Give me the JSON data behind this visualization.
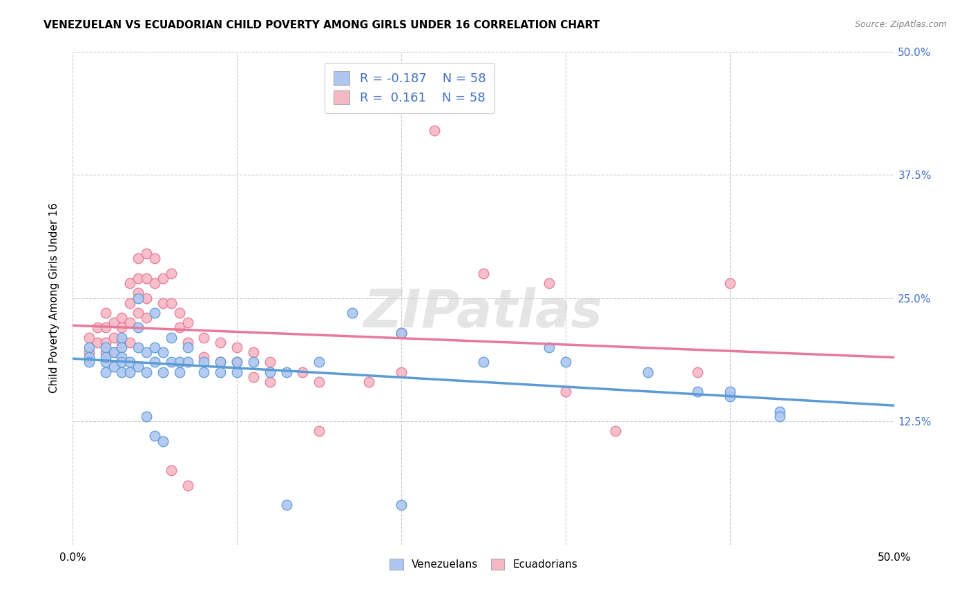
{
  "title": "VENEZUELAN VS ECUADORIAN CHILD POVERTY AMONG GIRLS UNDER 16 CORRELATION CHART",
  "source": "Source: ZipAtlas.com",
  "ylabel": "Child Poverty Among Girls Under 16",
  "xlim": [
    0.0,
    0.5
  ],
  "ylim": [
    0.0,
    0.5
  ],
  "yticks": [
    0.0,
    0.125,
    0.25,
    0.375,
    0.5
  ],
  "xticks": [
    0.0,
    0.1,
    0.2,
    0.3,
    0.4,
    0.5
  ],
  "ytick_labels_right": [
    "",
    "12.5%",
    "25.0%",
    "37.5%",
    "50.0%"
  ],
  "xtick_labels": [
    "0.0%",
    "",
    "",
    "",
    "",
    "50.0%"
  ],
  "venezuelan_color": "#aec6f0",
  "ecuadorian_color": "#f5b8c4",
  "venezuelan_line_color": "#5b9bd5",
  "ecuadorian_line_color": "#e8799a",
  "background_color": "#ffffff",
  "grid_color": "#cccccc",
  "watermark": "ZIPatlas",
  "tick_color": "#4472c4",
  "venezuelan_scatter": [
    [
      0.01,
      0.2
    ],
    [
      0.01,
      0.19
    ],
    [
      0.01,
      0.185
    ],
    [
      0.02,
      0.2
    ],
    [
      0.02,
      0.185
    ],
    [
      0.02,
      0.19
    ],
    [
      0.02,
      0.175
    ],
    [
      0.025,
      0.195
    ],
    [
      0.025,
      0.18
    ],
    [
      0.03,
      0.21
    ],
    [
      0.03,
      0.2
    ],
    [
      0.03,
      0.19
    ],
    [
      0.03,
      0.185
    ],
    [
      0.03,
      0.175
    ],
    [
      0.035,
      0.185
    ],
    [
      0.035,
      0.175
    ],
    [
      0.04,
      0.25
    ],
    [
      0.04,
      0.22
    ],
    [
      0.04,
      0.2
    ],
    [
      0.04,
      0.18
    ],
    [
      0.045,
      0.195
    ],
    [
      0.045,
      0.175
    ],
    [
      0.05,
      0.235
    ],
    [
      0.05,
      0.2
    ],
    [
      0.05,
      0.185
    ],
    [
      0.055,
      0.195
    ],
    [
      0.055,
      0.175
    ],
    [
      0.06,
      0.21
    ],
    [
      0.06,
      0.185
    ],
    [
      0.065,
      0.185
    ],
    [
      0.065,
      0.175
    ],
    [
      0.07,
      0.2
    ],
    [
      0.07,
      0.185
    ],
    [
      0.08,
      0.185
    ],
    [
      0.08,
      0.175
    ],
    [
      0.09,
      0.185
    ],
    [
      0.09,
      0.175
    ],
    [
      0.1,
      0.185
    ],
    [
      0.1,
      0.175
    ],
    [
      0.11,
      0.185
    ],
    [
      0.12,
      0.175
    ],
    [
      0.13,
      0.175
    ],
    [
      0.15,
      0.185
    ],
    [
      0.17,
      0.235
    ],
    [
      0.2,
      0.215
    ],
    [
      0.25,
      0.185
    ],
    [
      0.29,
      0.2
    ],
    [
      0.3,
      0.185
    ],
    [
      0.35,
      0.175
    ],
    [
      0.38,
      0.155
    ],
    [
      0.4,
      0.15
    ],
    [
      0.43,
      0.135
    ],
    [
      0.045,
      0.13
    ],
    [
      0.05,
      0.11
    ],
    [
      0.055,
      0.105
    ],
    [
      0.13,
      0.04
    ],
    [
      0.2,
      0.04
    ],
    [
      0.4,
      0.155
    ],
    [
      0.43,
      0.13
    ]
  ],
  "ecuadorian_scatter": [
    [
      0.01,
      0.21
    ],
    [
      0.01,
      0.195
    ],
    [
      0.015,
      0.22
    ],
    [
      0.015,
      0.205
    ],
    [
      0.02,
      0.235
    ],
    [
      0.02,
      0.22
    ],
    [
      0.02,
      0.205
    ],
    [
      0.02,
      0.195
    ],
    [
      0.025,
      0.225
    ],
    [
      0.025,
      0.21
    ],
    [
      0.025,
      0.195
    ],
    [
      0.03,
      0.23
    ],
    [
      0.03,
      0.22
    ],
    [
      0.03,
      0.205
    ],
    [
      0.035,
      0.265
    ],
    [
      0.035,
      0.245
    ],
    [
      0.035,
      0.225
    ],
    [
      0.035,
      0.205
    ],
    [
      0.04,
      0.29
    ],
    [
      0.04,
      0.27
    ],
    [
      0.04,
      0.255
    ],
    [
      0.04,
      0.235
    ],
    [
      0.045,
      0.295
    ],
    [
      0.045,
      0.27
    ],
    [
      0.045,
      0.25
    ],
    [
      0.045,
      0.23
    ],
    [
      0.05,
      0.29
    ],
    [
      0.05,
      0.265
    ],
    [
      0.055,
      0.27
    ],
    [
      0.055,
      0.245
    ],
    [
      0.06,
      0.275
    ],
    [
      0.06,
      0.245
    ],
    [
      0.065,
      0.235
    ],
    [
      0.065,
      0.22
    ],
    [
      0.07,
      0.225
    ],
    [
      0.07,
      0.205
    ],
    [
      0.08,
      0.21
    ],
    [
      0.08,
      0.19
    ],
    [
      0.09,
      0.205
    ],
    [
      0.09,
      0.185
    ],
    [
      0.1,
      0.2
    ],
    [
      0.1,
      0.185
    ],
    [
      0.11,
      0.195
    ],
    [
      0.11,
      0.17
    ],
    [
      0.12,
      0.185
    ],
    [
      0.12,
      0.165
    ],
    [
      0.14,
      0.175
    ],
    [
      0.15,
      0.165
    ],
    [
      0.15,
      0.115
    ],
    [
      0.18,
      0.165
    ],
    [
      0.2,
      0.215
    ],
    [
      0.2,
      0.175
    ],
    [
      0.22,
      0.42
    ],
    [
      0.25,
      0.275
    ],
    [
      0.29,
      0.265
    ],
    [
      0.3,
      0.155
    ],
    [
      0.33,
      0.115
    ],
    [
      0.38,
      0.175
    ],
    [
      0.4,
      0.265
    ],
    [
      0.06,
      0.075
    ],
    [
      0.07,
      0.06
    ]
  ]
}
